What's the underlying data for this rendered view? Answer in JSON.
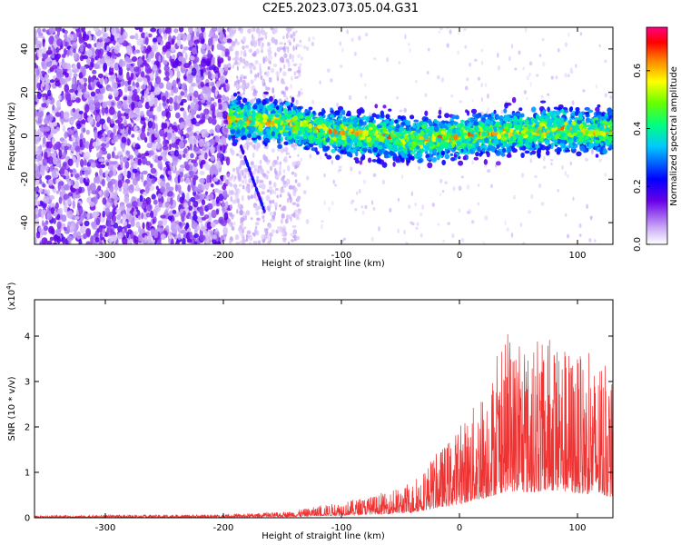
{
  "title": "C2E5.2023.073.05.04.G31",
  "chart_data": [
    {
      "type": "heatmap",
      "xlabel": "Height of straight line (km)",
      "ylabel": "Frequency (Hz)",
      "xlim": [
        -360,
        130
      ],
      "ylim": [
        -50,
        50
      ],
      "x_ticks": [
        -300,
        -200,
        -100,
        0,
        100
      ],
      "y_ticks": [
        -40,
        -20,
        0,
        20,
        40
      ],
      "colorbar": {
        "label": "Normalized spectral amplitude",
        "range": [
          0,
          0.75
        ],
        "ticks": [
          0.0,
          0.2,
          0.4,
          0.6
        ]
      },
      "regions": [
        {
          "x_range": [
            -360,
            -195
          ],
          "freq_range": [
            -50,
            50
          ],
          "amplitude": 0.12,
          "description_level": "scattered noise"
        },
        {
          "x_range": [
            -195,
            130
          ],
          "center_freq": [
            8,
            6,
            2,
            0,
            -2,
            0,
            2,
            3,
            2
          ],
          "bandwidth_hz": 14,
          "peak_amplitude": 0.7
        }
      ]
    },
    {
      "type": "line",
      "xlabel": "Height of straight line (km)",
      "ylabel": "SNR (10 * v/v)",
      "y_exponent_label": "(x10",
      "y_exponent": "4",
      "xlim": [
        -360,
        130
      ],
      "ylim": [
        0,
        4.8
      ],
      "x_ticks": [
        -300,
        -200,
        -100,
        0,
        100
      ],
      "y_ticks": [
        0,
        1,
        2,
        3,
        4
      ],
      "color": "#ee3333",
      "envelope": {
        "x": [
          -360,
          -200,
          -150,
          -120,
          -100,
          -80,
          -60,
          -40,
          -20,
          0,
          20,
          40,
          60,
          80,
          100,
          120,
          130
        ],
        "y": [
          0.05,
          0.07,
          0.12,
          0.25,
          0.35,
          0.45,
          0.55,
          0.75,
          1.4,
          2.0,
          2.8,
          3.9,
          3.7,
          4.0,
          3.6,
          3.3,
          3.0
        ]
      }
    }
  ]
}
